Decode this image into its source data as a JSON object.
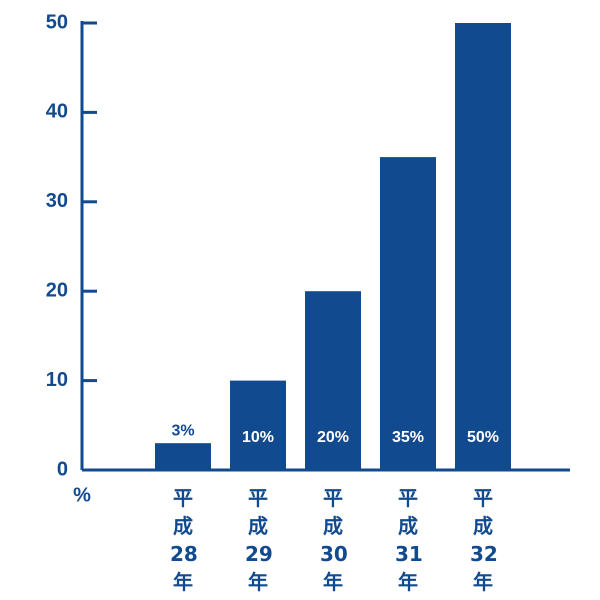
{
  "chart_data": {
    "type": "bar",
    "y_label": "%",
    "categories": [
      "平成28年",
      "平成29年",
      "平成30年",
      "平成31年",
      "平成32年"
    ],
    "values": [
      3,
      10,
      20,
      35,
      50
    ],
    "value_labels": [
      "3%",
      "10%",
      "20%",
      "35%",
      "50%"
    ],
    "color": "#124a8f",
    "ylim": [
      0,
      50
    ],
    "yticks": [
      0,
      10,
      20,
      30,
      40,
      50
    ]
  }
}
